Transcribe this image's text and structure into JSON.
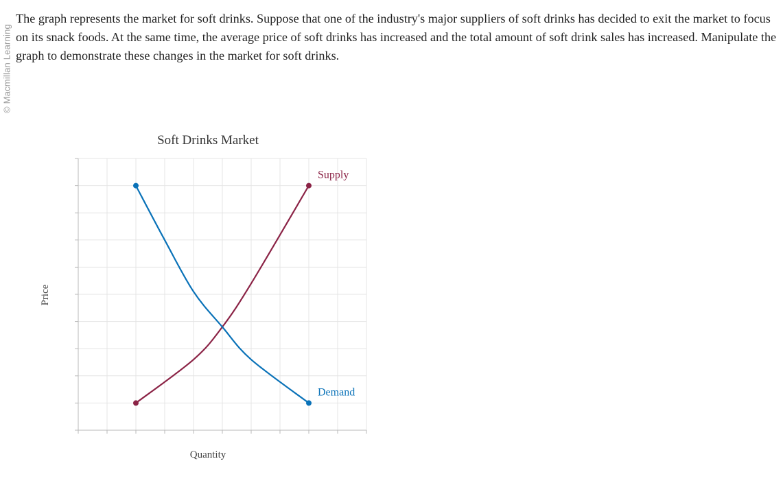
{
  "watermark": "© Macmillan Learning",
  "question": {
    "text": "The graph represents the market for soft drinks. Suppose that one of the industry's major suppliers of soft drinks has decided to exit the market to focus on its snack foods. At the same time, the average price of soft drinks has increased and the total amount of soft drink sales has increased. Manipulate the graph to demonstrate these changes in the market for soft drinks."
  },
  "chart_data": {
    "type": "line",
    "title": "Soft Drinks Market",
    "xlabel": "Quantity",
    "ylabel": "Price",
    "xlim": [
      0,
      10
    ],
    "ylim": [
      0,
      10
    ],
    "grid": true,
    "tick_labels": false,
    "series": [
      {
        "name": "Supply",
        "color": "#8b2346",
        "points": [
          [
            2,
            1
          ],
          [
            4,
            2.6
          ],
          [
            5,
            3.8
          ],
          [
            6,
            5.4
          ],
          [
            8,
            9
          ]
        ]
      },
      {
        "name": "Demand",
        "color": "#0a72b8",
        "points": [
          [
            2,
            9
          ],
          [
            3,
            7
          ],
          [
            4,
            5.1
          ],
          [
            5,
            3.8
          ],
          [
            6,
            2.6
          ],
          [
            8,
            1
          ]
        ]
      }
    ],
    "label_positions": {
      "Supply": "top-right",
      "Demand": "bottom-right"
    }
  }
}
